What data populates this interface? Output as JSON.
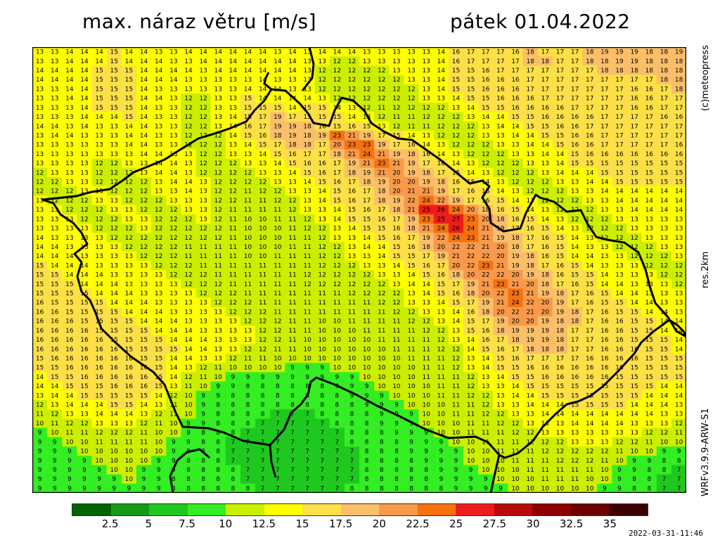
{
  "title": {
    "variable": "max. náraz větru [m/s]",
    "date": "pátek 01.04.2022"
  },
  "side_labels": {
    "copyright": "(c)meteopress",
    "resolution": "res.2km",
    "model": "WRFv3.9.9-ARW-S1"
  },
  "timestamp": "2022-03-31-11:46",
  "legend": {
    "colors": [
      "#006400",
      "#169b16",
      "#1fc81f",
      "#33ee22",
      "#ccee00",
      "#ffff00",
      "#fde047",
      "#fbbf6a",
      "#f89a4a",
      "#f5720f",
      "#ee1c1c",
      "#b80a0a",
      "#8c0000",
      "#6e0000",
      "#3c0000"
    ],
    "ticks": [
      "2.5",
      "5",
      "7.5",
      "10",
      "12.5",
      "15",
      "17.5",
      "20",
      "22.5",
      "25",
      "27.5",
      "30",
      "32.5",
      "35"
    ]
  },
  "map": {
    "rows": [
      "13 13 14 14 14 15 14 14 13 13 14 14 14 14 14 14 13 14 13 14 14 14 13 13 13 13 13 14 16 17 17 17 16 18 17 17 17 18 19 19 19 18 18 19",
      "13 13 14 14 14 15 14 14 14 13 13 14 14 14 14 14 14 14 13 13 12 12 13 13 13 13 13 14 16 17 17 17 17 18 18 17 17 18 18 19 19 18 18 18",
      "14 14 14 14 15 15 15 14 14 14 14 13 14 14 14 14 14 14 13 12 12 12 12 12 13 13 13 14 15 15 16 17 17 17 17 17 17 17 18 18 18 18 18 18",
      "14 14 14 14 15 15 15 14 14 14 13 13 13 13 13 14 13 13 13 12 12 12 12 12 12 13 13 14 15 15 16 16 16 17 17 17 17 17 17 17 17 17 18 18",
      "13 13 14 14 15 15 15 14 13 13 13 13 13 13 14 14 14 13 13 12 12 12 12 12 12 12 13 14 15 15 16 16 16 17 17 17 17 17 17 17 16 16 17 18",
      "13 13 14 14 15 15 15 14 14 13 12 12 13 13 15 14 14 14 14 13 12 12 12 12 12 12 13 13 14 15 15 16 16 16 17 17 17 17 17 17 16 16 17 17",
      "13 13 13 14 15 15 15 14 13 13 12 12 13 13 15 15 15 14 15 15 14 13 12 11 12 12 12 12 13 14 15 15 16 16 16 16 17 17 17 17 16 16 17 17",
      "13 13 13 14 14 14 15 14 13 13 12 12 13 14 15 17 19 17 15 15 15 14 13 12 11 11 12 12 12 13 14 14 15 15 16 16 16 16 17 17 17 17 16 16",
      "14 14 13 14 13 13 14 14 13 13 12 12 13 14 16 17 19 19 18 16 15 16 15 13 12 11 11 12 12 12 13 14 14 15 15 16 16 17 17 17 17 17 17 17",
      "13 14 14 13 13 13 14 14 13 13 12 12 12 14 15 16 18 19 18 19 23 21 19 17 15 14 13 12 12 12 13 13 14 14 15 15 16 16 17 17 17 17 17 17",
      "13 13 13 13 13 13 14 14 13 13 12 12 12 13 14 15 17 18 18 17 20 23 23 19 17 16 14 13 12 12 12 13 13 14 14 15 16 16 17 17 17 17 17 16",
      "13 13 13 13 13 13 13 14 14 13 13 12 12 13 13 14 15 16 17 17 18 21 24 21 19 18 16 14 13 12 12 12 13 13 14 14 15 16 16 16 16 16 16 16",
      "13 13 13 13 12 12 13 13 14 14 13 12 12 12 13 13 14 15 16 16 17 19 21 23 21 19 17 16 14 13 12 12 12 13 13 14 15 15 15 15 15 15 15 15",
      "12 13 13 13 12 12 12 13 14 14 13 12 12 12 12 13 13 14 15 16 17 18 19 21 20 19 18 17 15 14 13 12 12 12 13 14 14 14 15 15 15 15 15 15",
      "12 12 13 13 12 12 12 12 13 14 14 13 12 12 12 12 13 13 14 15 16 17 18 19 20 20 19 18 16 15 14 13 12 12 12 13 13 14 14 15 15 15 15 15",
      "12 12 12 13 13 12 12 12 13 13 14 13 12 12 11 12 12 13 13 14 15 16 17 18 20 21 21 19 17 16 15 14 13 12 12 12 13 13 14 14 14 14 14 14",
      "13 12 12 12 13 13 12 12 12 13 13 13 12 12 11 11 12 12 13 14 15 16 17 18 19 22 24 22 19 17 16 15 14 13 12 12 12 13 13 14 14 14 14 14",
      "13 13 12 12 12 13 13 12 12 12 13 13 12 11 11 11 11 12 13 13 14 15 16 17 18 21 25 26 24 20 18 16 15 14 13 12 12 12 13 13 14 14 14 14",
      "13 13 13 12 12 12 13 13 12 12 12 13 12 11 10 10 11 11 12 13 14 15 15 16 17 19 23 25 27 23 20 18 16 15 14 13 12 12 12 13 13 13 13 13",
      "13 13 13 13 12 12 12 13 12 12 12 12 12 11 10 10 10 11 12 12 13 14 15 15 16 18 21 24 26 24 21 19 17 16 15 14 13 12 12 12 13 13 13 13",
      "14 13 13 13 13 12 12 12 12 12 12 12 12 11 10 10 10 11 11 12 13 13 14 15 16 17 19 22 24 23 21 19 18 17 16 15 14 13 12 12 12 13 13 13",
      "14 14 13 13 13 13 12 12 12 12 11 11 11 11 10 10 10 11 11 12 12 13 14 14 15 16 18 20 22 22 21 20 18 17 16 15 14 13 13 12 12 12 13 13",
      "14 14 14 13 13 13 13 12 12 12 11 11 11 11 10 10 11 11 11 12 12 13 13 14 15 15 17 19 21 22 22 20 19 18 16 15 14 14 13 13 12 12 12 13",
      "15 14 14 14 13 13 13 13 12 12 12 11 11 11 11 11 11 11 11 12 12 12 13 13 14 15 16 17 20 22 23 21 19 18 17 16 15 14 13 13 13 12 12 12",
      "15 15 14 14 14 13 13 13 13 12 12 12 11 11 11 11 11 11 12 12 12 12 12 13 13 14 15 16 18 20 22 22 20 19 18 16 15 15 14 13 13 13 12 12",
      "15 15 15 14 14 14 13 13 13 13 12 12 12 11 11 11 11 11 12 12 12 12 12 12 13 14 14 15 17 19 21 23 21 20 18 17 16 15 14 14 13 13 13 12",
      "15 15 15 15 14 14 14 13 13 13 13 12 12 12 11 11 11 11 11 11 11 12 12 12 12 13 14 15 16 18 20 22 23 21 19 18 17 16 15 14 14 13 13 13",
      "16 15 15 15 15 14 14 14 13 13 13 13 12 12 12 11 11 11 11 11 11 11 11 12 12 13 13 14 15 17 19 21 24 22 20 19 17 16 15 15 14 14 13 13",
      "16 16 15 15 15 15 14 14 14 13 13 13 13 12 12 12 11 11 11 11 11 11 11 11 12 12 13 13 14 16 18 20 22 21 20 19 18 17 16 15 15 14 14 13",
      "16 16 16 15 15 15 15 14 14 14 13 13 13 13 12 12 12 11 11 10 10 11 11 11 11 12 12 13 14 15 17 19 20 20 19 18 18 17 16 16 15 15 14 14",
      "16 16 16 16 15 15 15 15 14 14 14 13 13 13 13 12 12 11 11 10 10 10 11 11 11 11 12 12 13 15 16 18 19 19 19 18 17 17 16 16 15 15 14 14",
      "16 16 16 16 16 15 15 15 15 14 14 14 13 13 13 12 12 11 10 10 10 10 10 11 11 11 11 12 13 14 16 17 18 19 19 18 17 17 16 16 15 15 15 14",
      "16 16 16 16 16 16 15 15 15 15 14 14 13 13 12 12 11 11 10 10 10 10 10 10 11 11 11 12 12 14 15 16 17 18 18 18 17 17 16 16 16 15 15 14",
      "15 16 16 16 16 16 16 15 15 14 14 13 13 12 11 11 10 10 10 10 10 10 10 10 10 11 11 11 12 13 14 15 16 17 17 17 17 16 16 16 16 15 15 15",
      "15 15 16 16 16 16 16 16 15 14 13 12 11 10 10 10 10 9 9 9 10 10 10 10 10 10 11 11 12 13 14 15 15 16 16 16 16 16 16 16 15 15 15 15",
      "14 15 15 16 16 16 16 16 15 14 12 11 10 9 9 9 9 9 9 9 9 9 10 10 10 10 11 11 11 12 13 14 15 15 16 16 16 16 16 15 15 15 15 15",
      "14 14 15 15 15 16 16 16 15 13 11 10 9 9 8 8 8 8 8 8 9 9 9 10 10 10 10 11 11 12 13 13 14 15 15 15 15 15 15 15 15 15 14 14",
      "13 14 14 15 15 15 15 15 14 12 10 9 9 8 8 8 8 8 8 8 8 9 9 9 10 10 10 11 11 12 12 13 14 14 15 15 15 15 15 15 15 14 14 14",
      "12 13 14 14 14 15 15 14 13 11 10 9 8 8 8 8 8 8 8 8 8 8 9 9 9 10 10 10 11 11 12 13 13 14 14 14 15 15 15 15 14 14 14 13",
      "11 12 13 13 14 14 14 13 12 11 10 9 8 8 8 8 7 7 7 8 8 8 8 9 9 9 10 10 11 11 12 12 13 13 14 14 14 14 14 14 14 14 13 13",
      "10 11 12 12 13 13 13 12 11 10 9 9 8 8 8 7 7 7 7 7 8 8 8 9 9 9 10 10 10 11 11 12 12 13 13 13 14 14 14 14 13 13 13 12",
      "9 10 11 11 12 12 12 11 10 10 9 8 8 8 7 7 7 7 7 7 7 8 8 8 9 9 9 10 10 11 11 11 12 12 13 13 13 13 13 13 13 12 12 11",
      "9 9 10 10 11 11 11 11 10 9 9 8 8 7 7 7 7 7 7 7 7 8 8 8 8 9 9 9 10 10 11 11 11 12 12 12 13 13 13 12 12 11 10 10",
      "9 9 9 10 10 10 10 10 10 9 8 8 8 7 7 7 7 7 7 7 7 7 8 8 8 9 9 9 9 10 10 11 11 11 12 12 12 12 12 11 10 10 9 9",
      "9 9 9 9 10 10 10 10 9 9 8 8 8 7 7 7 7 7 7 7 7 7 8 8 8 8 9 9 9 10 10 10 11 11 11 12 12 12 11 10 9 9 8 8",
      "9 9 9 9 9 10 10 9 9 9 8 8 8 8 7 7 7 7 7 7 7 7 8 8 8 8 8 9 9 9 10 10 10 11 11 11 11 11 10 9 9 8 8 7",
      "9 9 9 9 9 9 10 9 9 8 8 8 8 8 7 7 7 7 7 7 7 7 8 8 8 8 8 9 9 9 9 10 10 10 11 11 11 10 10 9 8 8 7 7",
      "9 9 9 9 9 9 9 9 9 8 8 8 8 8 8 7 7 7 7 7 7 8 8 8 8 8 8 8 9 9 9 9 10 10 10 10 10 10 9 9 8 8 7 7"
    ]
  }
}
